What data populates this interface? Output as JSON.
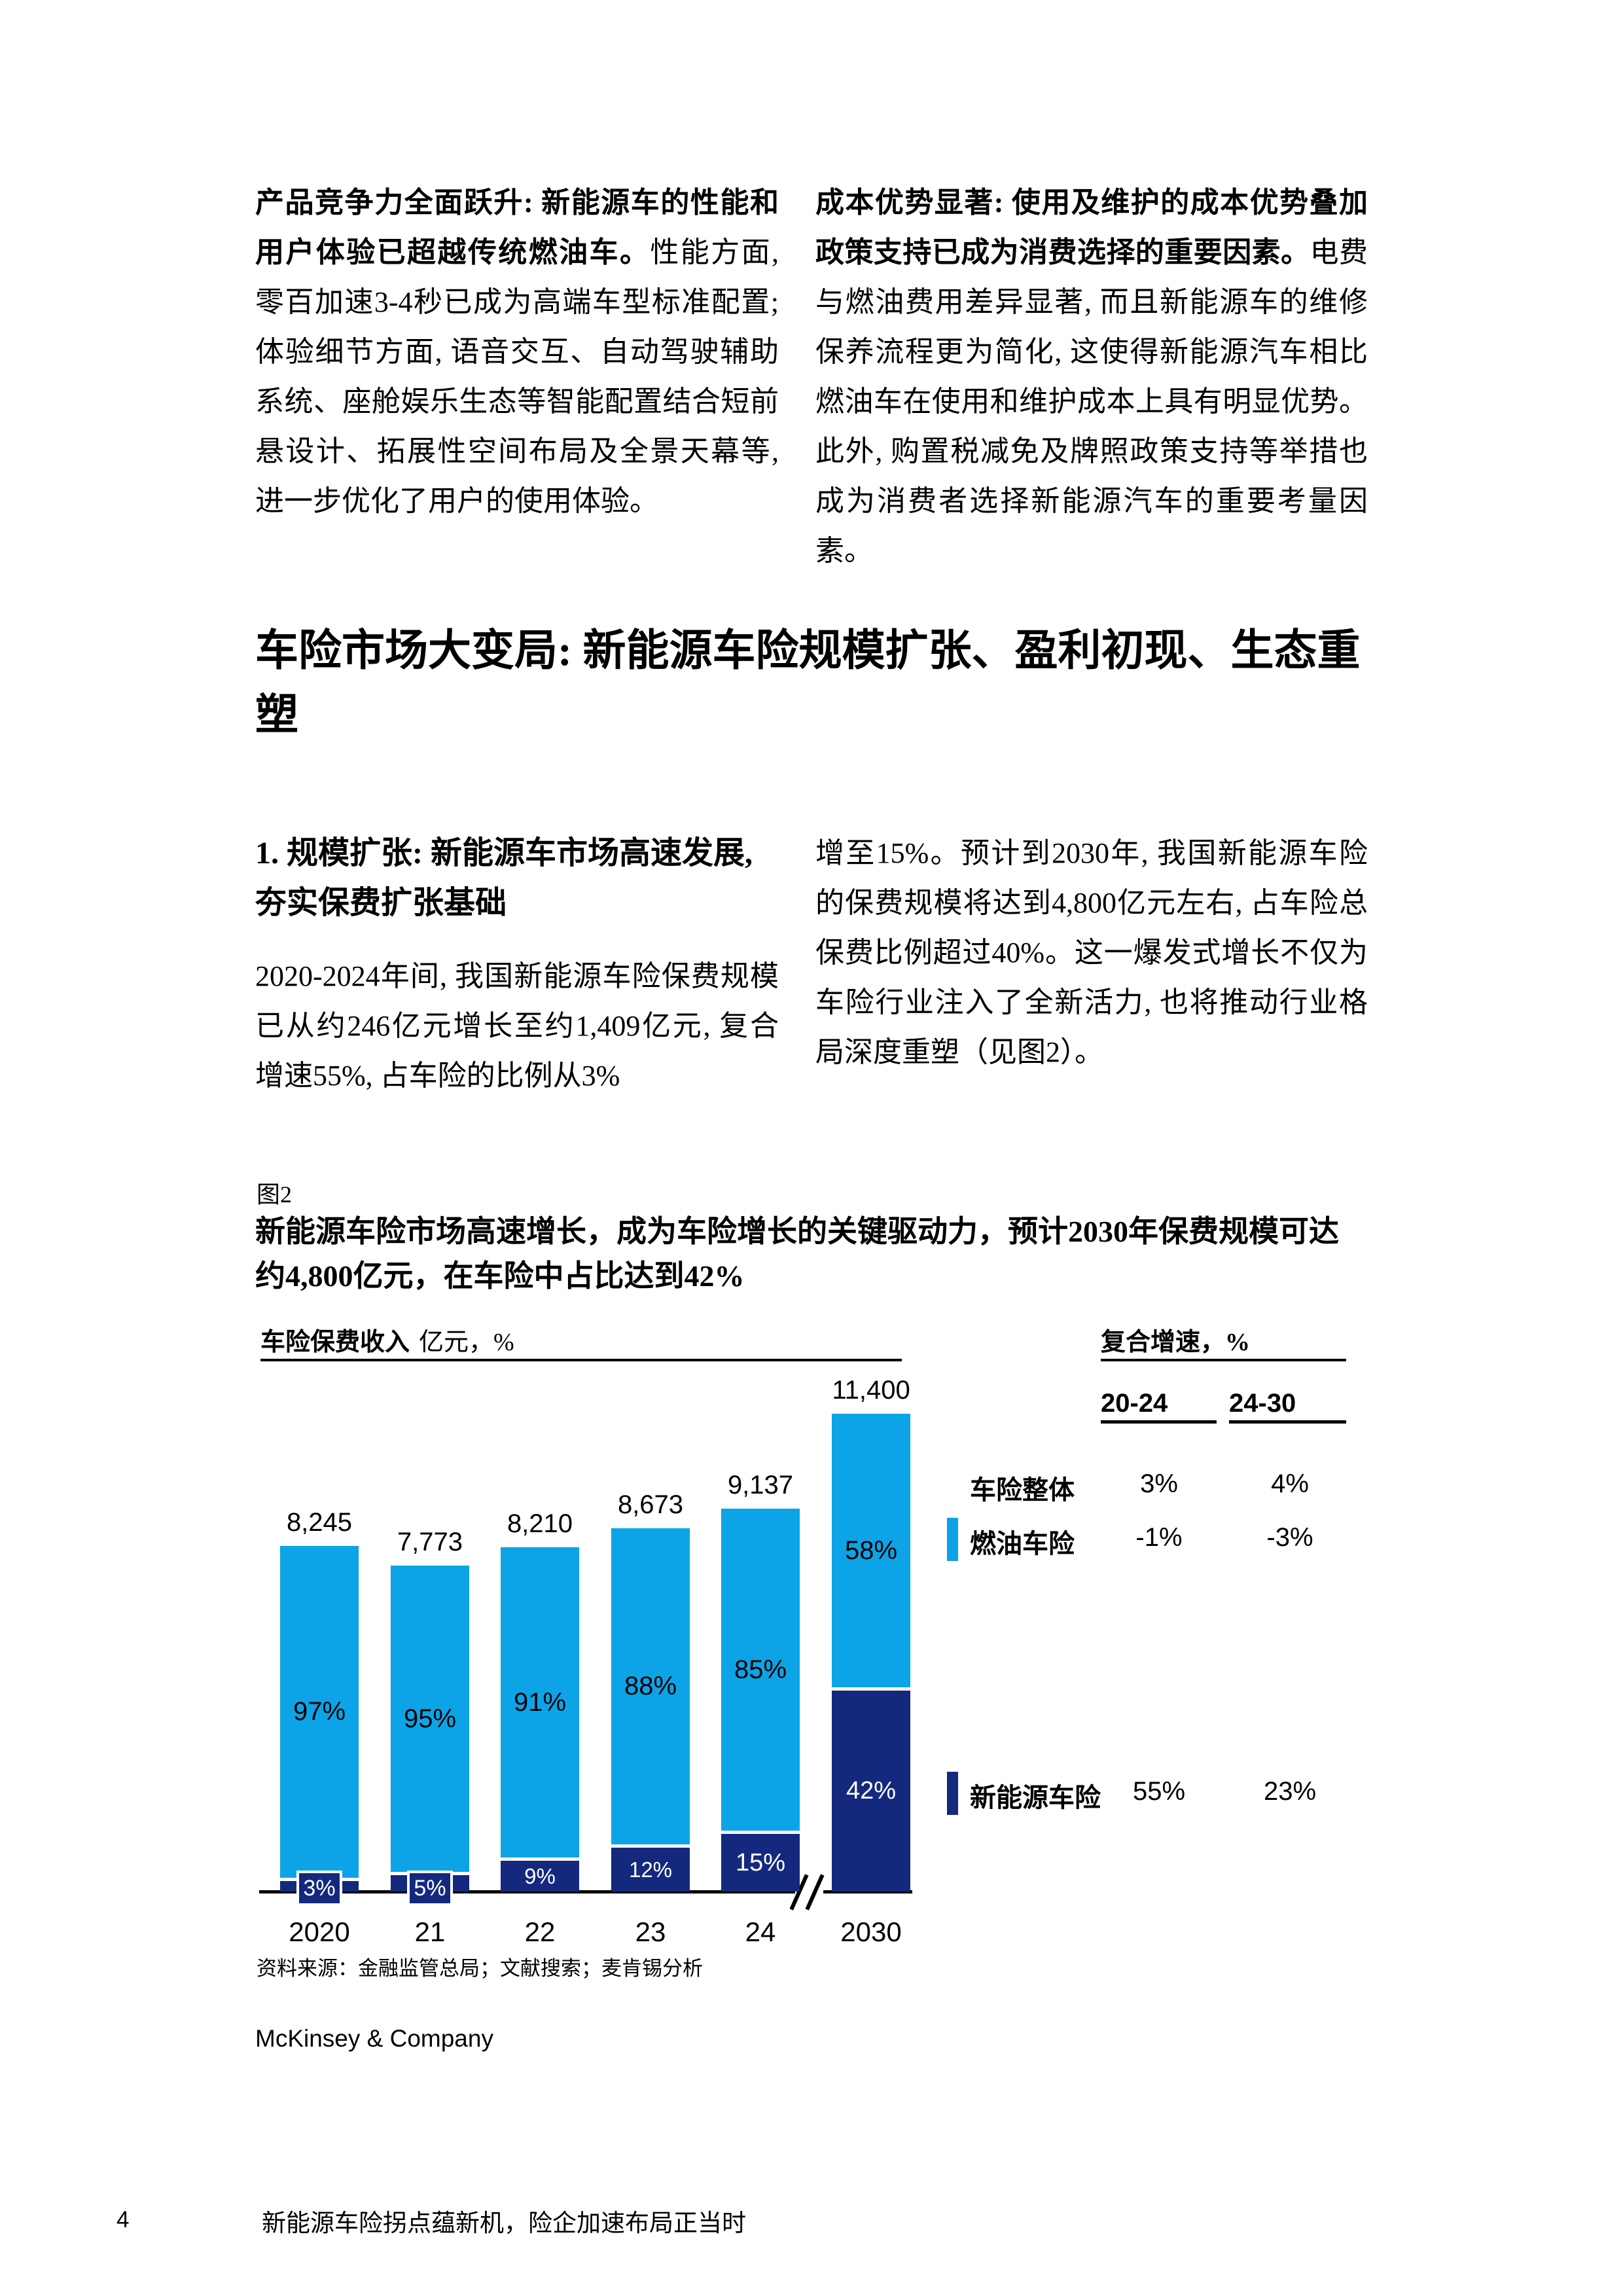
{
  "intro_columns": {
    "left": {
      "bold": "产品竞争力全面跃升: 新能源车的性能和用户体验已超越传统燃油车。",
      "rest": "性能方面, 零百加速3-4秒已成为高端车型标准配置; 体验细节方面, 语音交互、自动驾驶辅助系统、座舱娱乐生态等智能配置结合短前悬设计、拓展性空间布局及全景天幕等, 进一步优化了用户的使用体验。"
    },
    "right": {
      "bold": "成本优势显著: 使用及维护的成本优势叠加政策支持已成为消费选择的重要因素。",
      "rest": "电费与燃油费用差异显著, 而且新能源车的维修保养流程更为简化, 这使得新能源汽车相比燃油车在使用和维护成本上具有明显优势。此外, 购置税减免及牌照政策支持等举措也成为消费者选择新能源汽车的重要考量因素。"
    }
  },
  "section": {
    "heading": "车险市场大变局: 新能源车险规模扩张、盈利初现、生态重塑",
    "sub_heading": "1. 规模扩张: 新能源车市场高速发展, 夯实保费扩张基础",
    "left_paragraph": "2020-2024年间, 我国新能源车险保费规模已从约246亿元增长至约1,409亿元, 复合增速55%, 占车险的比例从3%",
    "right_paragraph": "增至15%。预计到2030年, 我国新能源车险的保费规模将达到4,800亿元左右, 占车险总保费比例超过40%。这一爆发式增长不仅为车险行业注入了全新活力, 也将推动行业格局深度重塑（见图2）。"
  },
  "exhibit": {
    "label": "图2",
    "title": "新能源车险市场高速增长，成为车险增长的关键驱动力，预计2030年保费规模可达约4,800亿元，在车险中占比达到42%",
    "source": "资料来源：金融监管总局；文献搜索；麦肯锡分析",
    "brand": "McKinsey & Company"
  },
  "chart_data": {
    "type": "bar",
    "stacked": true,
    "title": "新能源车险市场高速增长，成为车险增长的关键驱动力，预计2030年保费规模可达约4,800亿元，在车险中占比达到42%",
    "axis_title_bold": "车险保费收入",
    "axis_title_unit": "亿元，%",
    "categories": [
      "2020",
      "21",
      "22",
      "23",
      "24",
      "2030"
    ],
    "totals": [
      8245,
      7773,
      8210,
      8673,
      9137,
      11400
    ],
    "total_labels": [
      "8,245",
      "7,773",
      "8,210",
      "8,673",
      "9,137",
      "11,400"
    ],
    "ylim": [
      0,
      11400
    ],
    "axis_break_between": [
      "24",
      "2030"
    ],
    "series": [
      {
        "name": "燃油车险",
        "color": "#0ca4e6",
        "pct": [
          97,
          95,
          91,
          88,
          85,
          58
        ]
      },
      {
        "name": "新能源车险",
        "color": "#14297e",
        "pct": [
          3,
          5,
          9,
          12,
          15,
          42
        ]
      }
    ],
    "growth_table": {
      "header": "复合增速，%",
      "columns": [
        "20-24",
        "24-30"
      ],
      "rows": [
        {
          "label": "车险整体",
          "swatch": null,
          "values": [
            "3%",
            "4%"
          ]
        },
        {
          "label": "燃油车险",
          "swatch": "#0ca4e6",
          "values": [
            "-1%",
            "-3%"
          ]
        },
        {
          "label": "新能源车险",
          "swatch": "#14297e",
          "values": [
            "55%",
            "23%"
          ]
        }
      ]
    }
  },
  "footer": {
    "page_number": "4",
    "doc_title": "新能源车险拐点蕴新机，险企加速布局正当时"
  }
}
